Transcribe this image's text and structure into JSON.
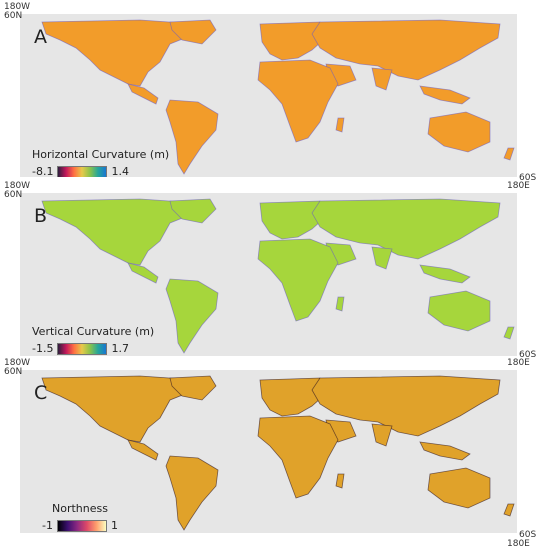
{
  "panels": [
    {
      "letter": "A",
      "legend_title": "Horizontal Curvature (m)",
      "min": "-8.1",
      "max": "1.4",
      "land_color": "#f29c2a",
      "texture_color": "#6a5bc4",
      "top_left_lon": "180W",
      "top_left_lat": "60N",
      "bottom_right_lat": "60S",
      "bottom_right_lon": "180E"
    },
    {
      "letter": "B",
      "legend_title": "Vertical Curvature (m)",
      "min": "-1.5",
      "max": "1.7",
      "land_color": "#a6d63c",
      "texture_color": "#6a5bc4",
      "top_left_lon": "180W",
      "top_left_lat": "60N",
      "bottom_right_lat": "60S",
      "bottom_right_lon": "180E"
    },
    {
      "letter": "C",
      "legend_title": "Northness",
      "min": "-1",
      "max": "1",
      "land_color": "#e0a22a",
      "texture_color": "#2a1020",
      "top_left_lon": "180W",
      "top_left_lat": "60N",
      "bottom_right_lat": "60S",
      "bottom_right_lon": "180E"
    }
  ]
}
